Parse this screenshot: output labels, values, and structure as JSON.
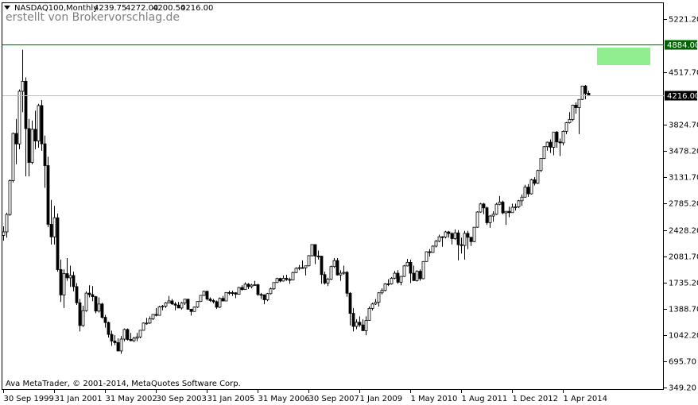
{
  "header": {
    "watermark": "erstellt von Brokervorschlag.de",
    "footer": "Ava MetaTrader, © 2001-2014, MetaQuotes Software Corp."
  },
  "chart_data": {
    "type": "candlestick",
    "title": "NASDAQ100,Monthly",
    "ohlc_labels": [
      "4239.75",
      "4272.00",
      "4200.50",
      "4216.00"
    ],
    "bull_color": "#ffffff",
    "bear_color": "#000000",
    "wick_color": "#000000",
    "ylim": [
      317,
      5431
    ],
    "yticks": [
      {
        "value": 5221.2,
        "label": "5221.20"
      },
      {
        "value": 4517.7,
        "label": "4517.70"
      },
      {
        "value": 3824.7,
        "label": "3824.70"
      },
      {
        "value": 3478.2,
        "label": "3478.20"
      },
      {
        "value": 3131.7,
        "label": "3131.70"
      },
      {
        "value": 2785.2,
        "label": "2785.20"
      },
      {
        "value": 2428.2,
        "label": "2428.20"
      },
      {
        "value": 2081.7,
        "label": "2081.70"
      },
      {
        "value": 1735.2,
        "label": "1735.20"
      },
      {
        "value": 1388.7,
        "label": "1388.70"
      },
      {
        "value": 1042.2,
        "label": "1042.20"
      },
      {
        "value": 695.7,
        "label": "695.70"
      },
      {
        "value": 349.2,
        "label": "349.20"
      }
    ],
    "hlines": [
      {
        "value": 4884,
        "label": "4884.00",
        "color": "#006400"
      },
      {
        "value": 4216,
        "label": "4216.00",
        "color": "#c0c0c0"
      }
    ],
    "categories": [
      "30 Sep 1999",
      null,
      null,
      null,
      null,
      null,
      null,
      null,
      null,
      null,
      null,
      null,
      null,
      null,
      null,
      null,
      "31 Jan 2001",
      null,
      null,
      null,
      null,
      null,
      null,
      null,
      null,
      null,
      null,
      null,
      null,
      null,
      null,
      null,
      "31 May 2002",
      null,
      null,
      null,
      null,
      null,
      null,
      null,
      null,
      null,
      null,
      null,
      null,
      null,
      null,
      null,
      "30 Sep 2003",
      null,
      null,
      null,
      null,
      null,
      null,
      null,
      null,
      null,
      null,
      null,
      null,
      null,
      null,
      null,
      "31 Jan 2005",
      null,
      null,
      null,
      null,
      null,
      null,
      null,
      null,
      null,
      null,
      null,
      null,
      null,
      null,
      null,
      "31 May 2006",
      null,
      null,
      null,
      null,
      null,
      null,
      null,
      null,
      null,
      null,
      null,
      null,
      null,
      null,
      null,
      "30 Sep 2007",
      null,
      null,
      null,
      null,
      null,
      null,
      null,
      null,
      null,
      null,
      null,
      null,
      null,
      null,
      null,
      "1 Jan 2009",
      null,
      null,
      null,
      null,
      null,
      null,
      null,
      null,
      null,
      null,
      null,
      null,
      null,
      null,
      null,
      "1 May 2010",
      null,
      null,
      null,
      null,
      null,
      null,
      null,
      null,
      null,
      null,
      null,
      null,
      null,
      null,
      null,
      "1 Aug 2011",
      null,
      null,
      null,
      null,
      null,
      null,
      null,
      null,
      null,
      null,
      null,
      null,
      null,
      null,
      null,
      "1 Dec 2012",
      null,
      null,
      null,
      null,
      null,
      null,
      null,
      null,
      null,
      null,
      null,
      null,
      null,
      null,
      null,
      "1 Apr 2014",
      null,
      null,
      null,
      null,
      null,
      null,
      null,
      null
    ],
    "open": [
      2360,
      2407,
      2637,
      3083,
      3708,
      3570,
      4266,
      4398,
      3773,
      3325,
      3763,
      3609,
      4077,
      3571,
      3283,
      2507,
      2341,
      2593,
      1908,
      1573,
      1855,
      1799,
      1830,
      1683,
      1469,
      1168,
      1365,
      1597,
      1577,
      1550,
      1359,
      1453,
      1277,
      1208,
      1051,
      963,
      942,
      832,
      989,
      1116,
      984,
      968,
      1001,
      1018,
      1106,
      1201,
      1201,
      1258,
      1315,
      1303,
      1416,
      1425,
      1468,
      1494,
      1454,
      1438,
      1400,
      1466,
      1517,
      1383,
      1354,
      1412,
      1486,
      1567,
      1621,
      1519,
      1499,
      1483,
      1411,
      1527,
      1493,
      1605,
      1603,
      1601,
      1583,
      1671,
      1645,
      1715,
      1683,
      1703,
      1708,
      1579,
      1575,
      1509,
      1590,
      1654,
      1737,
      1790,
      1757,
      1793,
      1777,
      1772,
      1869,
      1925,
      1934,
      1932,
      1958,
      2092,
      2239,
      2087,
      2085,
      1842,
      1730,
      1781,
      1948,
      2028,
      1837,
      1860,
      1872,
      1595,
      1329,
      1157,
      1212,
      1176,
      1100,
      1237,
      1395,
      1453,
      1477,
      1601,
      1632,
      1720,
      1719,
      1794,
      1860,
      1741,
      1818,
      1957,
      2004,
      1860,
      1762,
      1886,
      1788,
      2015,
      2144,
      2135,
      2218,
      2283,
      2342,
      2338,
      2406,
      2385,
      2318,
      2394,
      2237,
      2227,
      2387,
      2335,
      2278,
      2468,
      2669,
      2776,
      2724,
      2528,
      2616,
      2640,
      2772,
      2800,
      2658,
      2678,
      2661,
      2732,
      2738,
      2818,
      2866,
      2998,
      2910,
      3096,
      3049,
      3218,
      3378,
      3533,
      3592,
      3526,
      3727,
      3596,
      3584,
      3736,
      3850,
      3893,
      4082,
      4050,
      4158,
      4335,
      4239.75
    ],
    "high": [
      2480,
      2660,
      3100,
      3720,
      3900,
      4290,
      4816,
      4450,
      3900,
      3880,
      4010,
      4100,
      4150,
      3680,
      3400,
      2830,
      2750,
      2650,
      2040,
      1910,
      2060,
      1960,
      1880,
      1730,
      1520,
      1430,
      1620,
      1700,
      1690,
      1560,
      1540,
      1470,
      1310,
      1220,
      1100,
      1040,
      1000,
      1030,
      1130,
      1130,
      1070,
      1020,
      1070,
      1110,
      1210,
      1270,
      1290,
      1320,
      1400,
      1430,
      1440,
      1480,
      1560,
      1520,
      1480,
      1480,
      1480,
      1520,
      1520,
      1390,
      1420,
      1490,
      1570,
      1630,
      1630,
      1540,
      1520,
      1500,
      1540,
      1560,
      1610,
      1630,
      1630,
      1610,
      1680,
      1700,
      1740,
      1730,
      1720,
      1760,
      1720,
      1600,
      1580,
      1600,
      1670,
      1740,
      1800,
      1800,
      1830,
      1840,
      1800,
      1880,
      1940,
      1970,
      2030,
      1950,
      2100,
      2240,
      2240,
      2160,
      2090,
      1880,
      1800,
      1960,
      2060,
      2060,
      1900,
      1960,
      1890,
      1610,
      1400,
      1250,
      1290,
      1250,
      1290,
      1420,
      1470,
      1520,
      1610,
      1660,
      1730,
      1780,
      1810,
      1890,
      1900,
      1820,
      1970,
      2050,
      2040,
      1960,
      1900,
      1910,
      2020,
      2150,
      2180,
      2230,
      2300,
      2370,
      2350,
      2420,
      2420,
      2400,
      2440,
      2430,
      2330,
      2420,
      2420,
      2340,
      2470,
      2680,
      2790,
      2790,
      2740,
      2630,
      2680,
      2790,
      2880,
      2820,
      2680,
      2740,
      2780,
      2780,
      2830,
      2900,
      3030,
      3040,
      3110,
      3130,
      3230,
      3380,
      3540,
      3600,
      3630,
      3730,
      3740,
      3640,
      3750,
      3860,
      3990,
      4090,
      4120,
      4160,
      4340,
      4350,
      4272
    ],
    "low": [
      2290,
      2330,
      2620,
      3060,
      3300,
      3500,
      3990,
      3140,
      3140,
      3300,
      3500,
      3520,
      3480,
      2990,
      2470,
      2240,
      2240,
      1880,
      1480,
      1400,
      1760,
      1680,
      1620,
      1440,
      1090,
      1150,
      1350,
      1540,
      1490,
      1330,
      1340,
      1260,
      1140,
      1010,
      900,
      910,
      830,
      795,
      960,
      970,
      960,
      950,
      960,
      1000,
      1100,
      1180,
      1190,
      1240,
      1290,
      1300,
      1370,
      1400,
      1460,
      1440,
      1370,
      1400,
      1380,
      1440,
      1380,
      1300,
      1350,
      1400,
      1480,
      1560,
      1500,
      1480,
      1460,
      1390,
      1400,
      1490,
      1490,
      1570,
      1560,
      1530,
      1580,
      1630,
      1640,
      1650,
      1660,
      1700,
      1560,
      1520,
      1450,
      1490,
      1580,
      1640,
      1730,
      1740,
      1750,
      1760,
      1720,
      1770,
      1860,
      1900,
      1920,
      1830,
      1950,
      2080,
      1980,
      2040,
      1720,
      1710,
      1690,
      1770,
      1930,
      1830,
      1760,
      1840,
      1550,
      1170,
      1090,
      1120,
      1150,
      1100,
      1040,
      1230,
      1370,
      1440,
      1420,
      1580,
      1620,
      1690,
      1710,
      1780,
      1720,
      1700,
      1810,
      1950,
      1730,
      1760,
      1750,
      1760,
      1780,
      2010,
      2080,
      2130,
      2200,
      2270,
      2210,
      2320,
      2330,
      2240,
      2300,
      2030,
      2120,
      2040,
      2180,
      2220,
      2270,
      2460,
      2660,
      2640,
      2500,
      2460,
      2540,
      2630,
      2760,
      2640,
      2500,
      2600,
      2660,
      2690,
      2720,
      2750,
      2860,
      2870,
      2900,
      3020,
      3040,
      3200,
      3370,
      3480,
      3450,
      3420,
      3520,
      3410,
      3550,
      3700,
      3840,
      3870,
      3970,
      3700,
      4150,
      4160,
      4200.5
    ],
    "close": [
      2407,
      2637,
      3083,
      3708,
      3570,
      4266,
      4398,
      3773,
      3325,
      3763,
      3609,
      4077,
      3571,
      3283,
      2507,
      2341,
      2593,
      1908,
      1573,
      1855,
      1799,
      1830,
      1683,
      1469,
      1168,
      1365,
      1597,
      1577,
      1550,
      1359,
      1453,
      1277,
      1208,
      1051,
      963,
      942,
      832,
      989,
      1116,
      984,
      968,
      1001,
      1018,
      1106,
      1201,
      1201,
      1258,
      1315,
      1303,
      1416,
      1425,
      1468,
      1494,
      1454,
      1438,
      1400,
      1466,
      1517,
      1383,
      1354,
      1412,
      1486,
      1567,
      1621,
      1519,
      1499,
      1483,
      1411,
      1527,
      1493,
      1605,
      1603,
      1601,
      1583,
      1671,
      1645,
      1715,
      1683,
      1703,
      1708,
      1579,
      1575,
      1509,
      1590,
      1654,
      1737,
      1790,
      1757,
      1793,
      1777,
      1772,
      1869,
      1925,
      1934,
      1932,
      1958,
      2092,
      2239,
      2087,
      2085,
      1842,
      1730,
      1781,
      1948,
      2028,
      1837,
      1860,
      1872,
      1595,
      1329,
      1157,
      1212,
      1176,
      1100,
      1237,
      1395,
      1453,
      1477,
      1601,
      1632,
      1720,
      1719,
      1794,
      1860,
      1741,
      1818,
      1957,
      2004,
      1860,
      1762,
      1886,
      1788,
      2015,
      2144,
      2135,
      2218,
      2283,
      2342,
      2338,
      2406,
      2385,
      2318,
      2394,
      2237,
      2227,
      2387,
      2335,
      2278,
      2468,
      2669,
      2776,
      2724,
      2528,
      2616,
      2640,
      2772,
      2800,
      2658,
      2678,
      2661,
      2732,
      2738,
      2818,
      2866,
      2998,
      2910,
      3096,
      3049,
      3218,
      3378,
      3533,
      3592,
      3526,
      3727,
      3596,
      3584,
      3736,
      3850,
      3893,
      4082,
      4050,
      4158,
      4335,
      4236,
      4216
    ]
  }
}
